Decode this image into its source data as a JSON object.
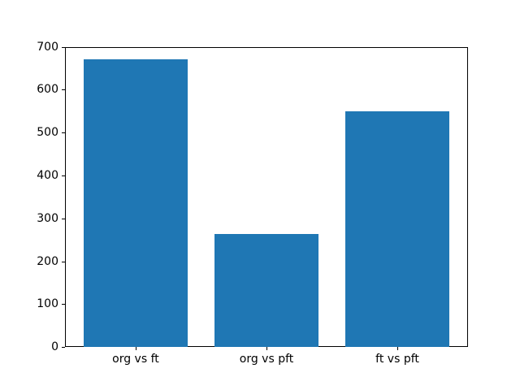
{
  "chart_data": {
    "type": "bar",
    "categories": [
      "org vs ft",
      "org vs pft",
      "ft vs pft"
    ],
    "values": [
      670,
      263,
      550
    ],
    "title": "",
    "xlabel": "",
    "ylabel": "",
    "ylim": [
      0,
      700
    ],
    "xlim": [
      -0.54,
      2.54
    ],
    "yticks": [
      0,
      100,
      200,
      300,
      400,
      500,
      600,
      700
    ],
    "bar_width": 0.8,
    "bar_color": "#1f77b4",
    "axis_color": "#000000",
    "background_color": "#ffffff",
    "grid": false,
    "legend": false
  }
}
